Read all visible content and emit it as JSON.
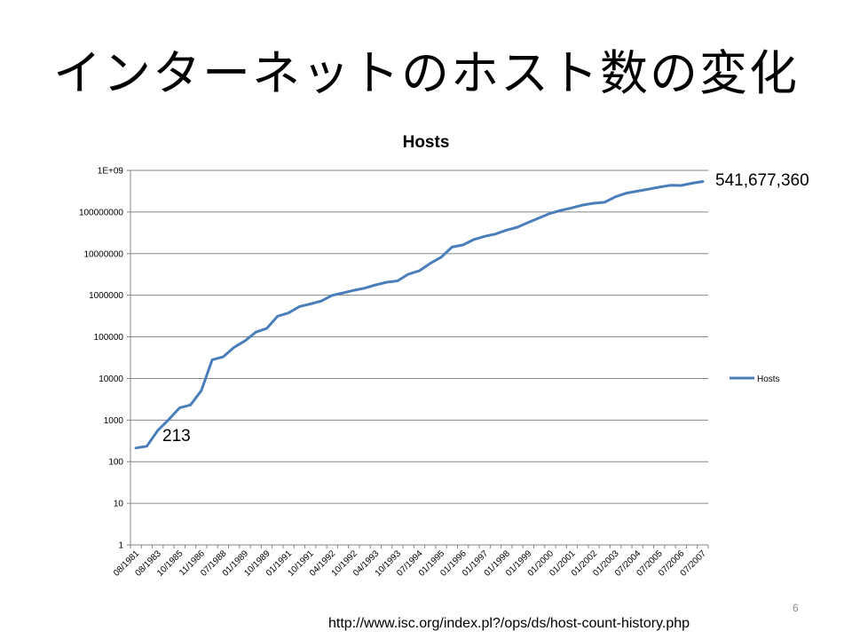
{
  "slide": {
    "title": "インターネットのホスト数の変化",
    "callout_end": "541,677,360",
    "callout_start": "213",
    "source_url": "http://www.isc.org/index.pl?/ops/ds/host-count-history.php",
    "page_number": "6"
  },
  "chart_data": {
    "type": "line",
    "title": "Hosts",
    "xlabel": "",
    "ylabel": "",
    "yscale": "log",
    "ylim": [
      1,
      1000000000
    ],
    "y_tick_labels": [
      "1E+09",
      "100000000",
      "10000000",
      "1000000",
      "100000",
      "10000",
      "1000",
      "100",
      "10",
      "1"
    ],
    "y_tick_values": [
      1000000000,
      100000000,
      10000000,
      1000000,
      100000,
      10000,
      1000,
      100,
      10,
      1
    ],
    "x_tick_labels": [
      "08/1981",
      "08/1983",
      "10/1985",
      "11/1986",
      "07/1988",
      "01/1989",
      "10/1989",
      "01/1991",
      "10/1991",
      "04/1992",
      "10/1992",
      "04/1993",
      "10/1993",
      "07/1994",
      "01/1995",
      "01/1996",
      "01/1997",
      "01/1998",
      "01/1999",
      "01/2000",
      "01/2001",
      "01/2002",
      "01/2003",
      "07/2004",
      "07/2005",
      "07/2006",
      "07/2007"
    ],
    "legend": {
      "position": "right",
      "entries": [
        "Hosts"
      ]
    },
    "grid": true,
    "line_color": "#4a7ebb",
    "series": [
      {
        "name": "Hosts",
        "values": [
          213,
          235,
          562,
          1024,
          1961,
          2308,
          5089,
          28174,
          33000,
          56000,
          80000,
          130000,
          159000,
          313000,
          376000,
          535000,
          617000,
          727000,
          992000,
          1136000,
          1313000,
          1486000,
          1776000,
          2056000,
          2217000,
          3212000,
          3864000,
          5846000,
          8200000,
          14352000,
          16146000,
          21819000,
          26053000,
          29670000,
          36739000,
          43230000,
          56218000,
          72398000,
          93047000,
          109574000,
          125888000,
          147345000,
          162128000,
          171638000,
          233101000,
          285139000,
          317646000,
          353284000,
          394991000,
          439286000,
          433193000,
          489774000,
          541677360
        ]
      }
    ]
  }
}
